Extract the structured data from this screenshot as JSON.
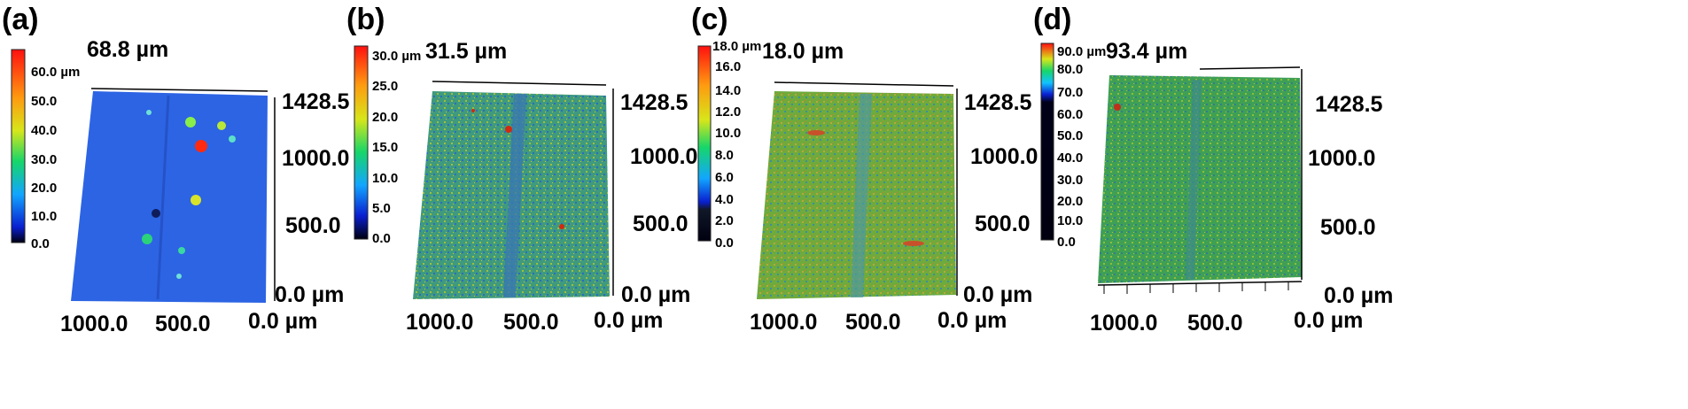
{
  "figure": {
    "panels": [
      {
        "label": "(a)",
        "max_height": "68.8 µm",
        "colorbar_ticks": [
          "60.0 µm",
          "50.0",
          "40.0",
          "30.0",
          "20.0",
          "10.0",
          "0.0"
        ],
        "y_ticks": [
          "1428.5",
          "1000.0",
          "500.0",
          "0.0 µm"
        ],
        "x_ticks": [
          "1000.0",
          "500.0",
          "0.0 µm"
        ],
        "surface_color": "#2a66e6"
      },
      {
        "label": "(b)",
        "max_height": "31.5 µm",
        "colorbar_ticks": [
          "30.0 µm",
          "25.0",
          "20.0",
          "15.0",
          "10.0",
          "5.0",
          "0.0"
        ],
        "y_ticks": [
          "1428.5",
          "1000.0",
          "500.0",
          "0.0 µm"
        ],
        "x_ticks": [
          "1000.0",
          "500.0",
          "0.0 µm"
        ],
        "surface_color": "#3f9a7e"
      },
      {
        "label": "(c)",
        "max_height": "18.0 µm",
        "colorbar_ticks": [
          "18.0 µm",
          "16.0",
          "14.0",
          "12.0",
          "10.0",
          "8.0",
          "6.0",
          "4.0",
          "2.0",
          "0.0"
        ],
        "y_ticks": [
          "1428.5",
          "1000.0",
          "500.0",
          "0.0 µm"
        ],
        "x_ticks": [
          "1000.0",
          "500.0",
          "0.0 µm"
        ],
        "surface_color": "#6faa3c"
      },
      {
        "label": "(d)",
        "max_height": "93.4 µm",
        "colorbar_ticks": [
          "90.0 µm",
          "80.0",
          "70.0",
          "60.0",
          "50.0",
          "40.0",
          "30.0",
          "20.0",
          "10.0",
          "0.0"
        ],
        "y_ticks": [
          "1428.5",
          "1000.0",
          "500.0",
          "0.0 µm"
        ],
        "x_ticks": [
          "1000.0",
          "500.0",
          "0.0 µm"
        ],
        "surface_color": "#3fa055"
      }
    ]
  }
}
